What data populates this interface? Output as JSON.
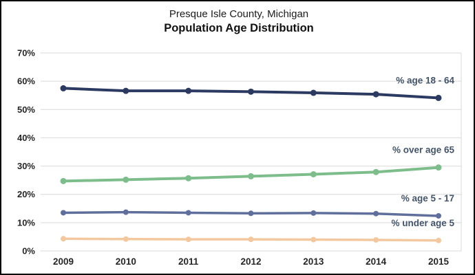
{
  "title": {
    "line1": "Presque Isle County, Michigan",
    "line2": "Population Age Distribution"
  },
  "chart_data": {
    "type": "line",
    "x": [
      "2009",
      "2010",
      "2011",
      "2012",
      "2013",
      "2014",
      "2015"
    ],
    "series": [
      {
        "name": "% age 18 - 64",
        "color": "#2C3A62",
        "values": [
          57.5,
          56.6,
          56.6,
          56.3,
          55.9,
          55.4,
          54.1
        ]
      },
      {
        "name": "% over age 65",
        "color": "#7DBD8B",
        "values": [
          24.7,
          25.2,
          25.7,
          26.4,
          27.1,
          27.9,
          29.5
        ]
      },
      {
        "name": "% age 5 - 17",
        "color": "#5F6E9B",
        "values": [
          13.5,
          13.7,
          13.5,
          13.3,
          13.4,
          13.2,
          12.4
        ]
      },
      {
        "name": "% under age 5",
        "color": "#F3C89E",
        "values": [
          4.3,
          4.2,
          4.1,
          4.1,
          4.0,
          3.9,
          3.7
        ]
      }
    ],
    "ylim": [
      0,
      70
    ],
    "ytick_step": 10,
    "ytick_labels": [
      "0%",
      "10%",
      "20%",
      "30%",
      "40%",
      "50%",
      "60%",
      "70%"
    ],
    "grid": true,
    "legend_position": "inline-right-above-line-end",
    "title": "Presque Isle County, Michigan — Population Age Distribution",
    "xlabel": "",
    "ylabel": ""
  },
  "colors": {
    "background": "#FFFFFF",
    "border": "#000000",
    "grid": "#D9D9D9",
    "tick_text": "#262626",
    "series_label_text": "#44546A"
  }
}
